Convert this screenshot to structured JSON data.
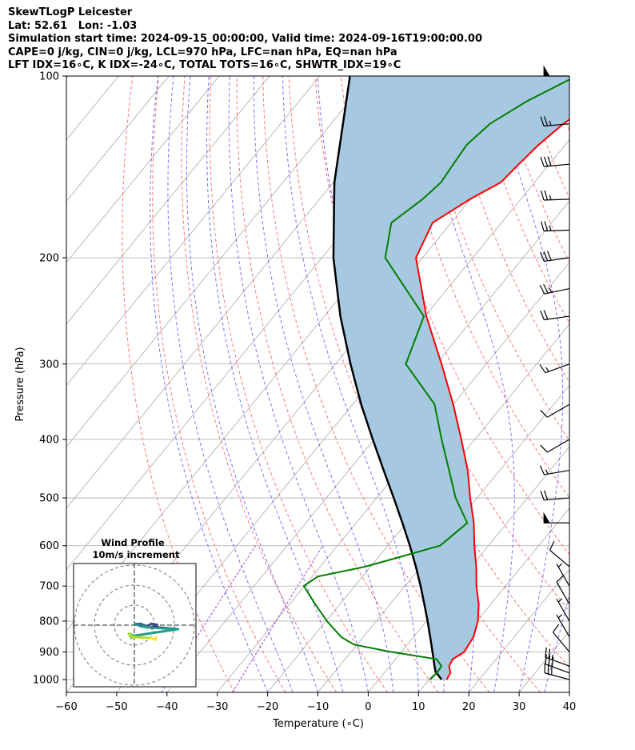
{
  "header": {
    "line1": "SkewTLogP Leicester",
    "line2": "Lat: 52.61   Lon: -1.03",
    "line3": "Simulation start time: 2024-09-15_00:00:00, Valid time: 2024-09-16T19:00:00.00",
    "line4": "CAPE=0 j/kg, CIN=0 j/kg, LCL=970 hPa, LFC=nan hPa, EQ=nan hPa",
    "line5": "LFT IDX=16∘C, K IDX=-24∘C, TOTAL TOTS=16∘C, SHWTR_IDX=19∘C"
  },
  "colors": {
    "temperature": "#ff0000",
    "dewpoint": "#008000",
    "parcel": "#000000",
    "cape_fill": "#a6c8e0",
    "dry_adiabat": "#ff6666",
    "moist_adiabat": "#6666ff",
    "mixing_ratio": "#9933cc",
    "isotherm": "#aaaaaa"
  },
  "chart_data": {
    "type": "line",
    "subtype": "skew-T log-P",
    "xlabel": "Temperature (∘C)",
    "ylabel": "Pressure (hPa)",
    "xlim": [
      -60,
      40
    ],
    "ylim": [
      1050,
      100
    ],
    "y_scale": "log",
    "grid": true,
    "x_ticks": [
      -60,
      -50,
      -40,
      -30,
      -20,
      -10,
      0,
      10,
      20,
      30,
      40
    ],
    "y_ticks": [
      1000,
      900,
      800,
      700,
      600,
      500,
      400,
      300,
      200,
      100
    ],
    "series": [
      {
        "key": "temperature",
        "pressure": [
          1000,
          975,
          950,
          925,
          900,
          850,
          800,
          750,
          700,
          650,
          600,
          550,
          500,
          450,
          400,
          350,
          300,
          250,
          200,
          175,
          160,
          150,
          140,
          130,
          120,
          110,
          100
        ],
        "temp": [
          13.5,
          13.2,
          11.8,
          11.4,
          12.5,
          11.9,
          10.2,
          7.6,
          4.2,
          1.0,
          -2.8,
          -6.6,
          -11.4,
          -16.4,
          -22.7,
          -30.0,
          -38.9,
          -49.7,
          -61.3,
          -63.7,
          -60.1,
          -56.7,
          -56.1,
          -55.3,
          -53.8,
          -51.2,
          -47.0
        ]
      },
      {
        "key": "dewpoint",
        "pressure": [
          1000,
          975,
          950,
          925,
          900,
          875,
          850,
          800,
          750,
          700,
          675,
          650,
          600,
          550,
          500,
          450,
          400,
          350,
          300,
          250,
          200,
          175,
          160,
          150,
          140,
          130,
          120,
          110,
          100
        ],
        "temp": [
          10.2,
          10.5,
          10.3,
          8.2,
          -2.0,
          -10.6,
          -14.4,
          -19.8,
          -24.9,
          -30.1,
          -28.9,
          -21.1,
          -9.6,
          -7.9,
          -14.3,
          -20.1,
          -26.6,
          -33.7,
          -46.0,
          -50.2,
          -67.4,
          -71.9,
          -69.5,
          -68.6,
          -69.1,
          -69.6,
          -68.4,
          -64.7,
          -59.0
        ]
      },
      {
        "key": "parcel",
        "pressure": [
          1000,
          970,
          950,
          900,
          850,
          800,
          750,
          700,
          650,
          600,
          550,
          500,
          450,
          400,
          350,
          300,
          250,
          200,
          150,
          100
        ],
        "temp": [
          12.5,
          10.0,
          8.9,
          6.2,
          3.3,
          0.2,
          -3.2,
          -6.9,
          -11.0,
          -15.6,
          -20.8,
          -26.6,
          -33.1,
          -40.3,
          -48.3,
          -57.0,
          -66.8,
          -77.7,
          -89.8,
          -104.0
        ]
      }
    ],
    "wind_barbs": {
      "pressure": [
        100,
        120,
        140,
        160,
        180,
        200,
        225,
        250,
        300,
        350,
        400,
        450,
        500,
        550,
        650,
        700,
        750,
        800,
        850,
        900,
        950,
        975,
        1000
      ],
      "speed_kt": [
        50,
        25,
        30,
        25,
        25,
        30,
        25,
        20,
        15,
        10,
        10,
        15,
        20,
        50,
        10,
        5,
        10,
        5,
        5,
        10,
        25,
        30,
        30
      ],
      "direction_deg": [
        270,
        265,
        265,
        268,
        268,
        262,
        258,
        262,
        250,
        240,
        240,
        260,
        265,
        270,
        310,
        330,
        330,
        330,
        330,
        320,
        290,
        290,
        285
      ]
    },
    "hodograph": {
      "title": "Wind Profile",
      "subtitle": "10m/s increment",
      "ring_count": 3
    }
  }
}
